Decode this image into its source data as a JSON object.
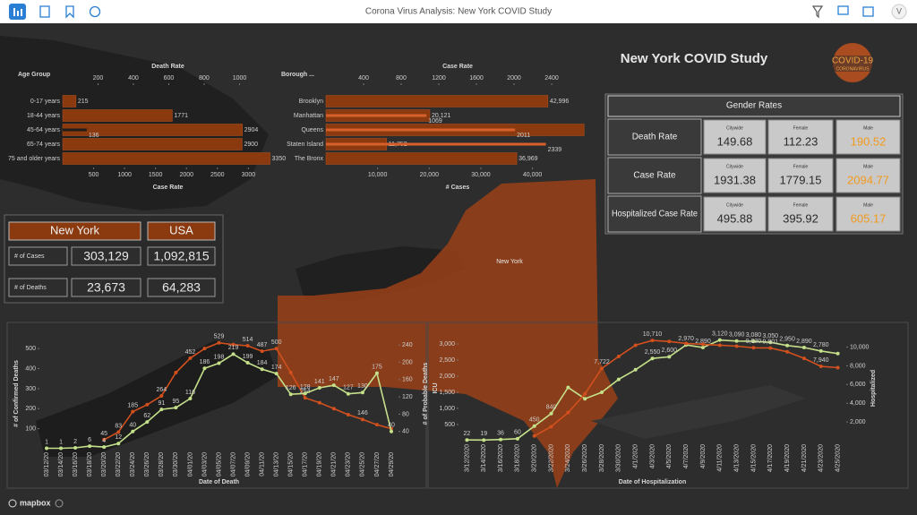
{
  "toolbar": {
    "title": "Corona Virus Analysis: New York COVID Study",
    "user_initial": "V"
  },
  "dashboard": {
    "title": "New York COVID Study",
    "logo_text": [
      "COVID-19",
      "CORONAVIRUS"
    ],
    "map_label": "New York",
    "map_attribution": "mapbox"
  },
  "summary_table": {
    "columns": [
      "New York",
      "USA"
    ],
    "rows": [
      {
        "label": "# of Cases",
        "values": [
          "303,129",
          "1,092,815"
        ]
      },
      {
        "label": "# of Deaths",
        "values": [
          "23,673",
          "64,283"
        ]
      }
    ]
  },
  "gender_rates": {
    "title": "Gender Rates",
    "columns": [
      "Citywide",
      "Female",
      "Male"
    ],
    "rows": [
      {
        "label": "Death Rate",
        "values": [
          "149.68",
          "112.23",
          "190.52"
        ]
      },
      {
        "label": "Case Rate",
        "values": [
          "1931.38",
          "1779.15",
          "2094.77"
        ]
      },
      {
        "label": "Hospitalized Case Rate",
        "values": [
          "495.88",
          "395.92",
          "605.17"
        ]
      }
    ]
  },
  "chart_data": [
    {
      "type": "hbar",
      "axis_title": "Age Group",
      "categories": [
        "0-17 years",
        "18-44 years",
        "45-64 years",
        "65-74 years",
        "75 and older years"
      ],
      "series": [
        {
          "name": "Case Rate",
          "color": "#8b3a0f",
          "values": [
            215,
            1771,
            2904,
            2900,
            3350
          ]
        },
        {
          "name": "Death Rate",
          "color": "#1e1e1e",
          "axis": "x2",
          "values": [
            null,
            null,
            136,
            null,
            null
          ]
        }
      ],
      "xlim": [
        0,
        3400
      ],
      "xticks": [
        500,
        1000,
        1500,
        2000,
        2500,
        3000
      ],
      "x2lim": [
        0,
        1190
      ],
      "x2ticks": [
        200,
        400,
        600,
        800,
        1000
      ]
    },
    {
      "type": "hbar",
      "axis_title": "Borough ...",
      "categories": [
        "Brooklyn",
        "Manhattan",
        "Queens",
        "Staten Island",
        "The Bronx"
      ],
      "series": [
        {
          "name": "# Cases",
          "color": "#8b3a0f",
          "values": [
            42996,
            20121,
            50000,
            11752,
            36969
          ],
          "value_labels": [
            "42,996",
            "20,121",
            null,
            "11,752",
            "36,969"
          ]
        },
        {
          "name": "Case Rate",
          "color": "#d8602a",
          "axis": "x2",
          "values": [
            null,
            1069,
            2011,
            2339,
            null
          ]
        }
      ],
      "xlim": [
        0,
        51000
      ],
      "xticks": [
        {
          "value": 10000,
          "label": "10,000"
        },
        {
          "value": 20000,
          "label": "20,000"
        },
        {
          "value": 30000,
          "label": "30,000"
        },
        {
          "value": 40000,
          "label": "40,000"
        }
      ],
      "x2lim": [
        0,
        2800
      ],
      "x2ticks": [
        400,
        800,
        1200,
        1600,
        2000,
        2400
      ]
    },
    {
      "type": "line",
      "x_title": "Date of Death",
      "y_title": "# of Confirmed Deaths",
      "y2_title": "# of Probable Deaths",
      "categories": [
        "03/12/20",
        "03/14/20",
        "03/16/20",
        "03/18/20",
        "03/20/20",
        "03/22/20",
        "03/24/20",
        "03/26/20",
        "03/28/20",
        "03/30/20",
        "04/01/20",
        "04/03/20",
        "04/05/20",
        "04/07/20",
        "04/09/20",
        "04/11/20",
        "04/13/20",
        "04/15/20",
        "04/17/20",
        "04/19/20",
        "04/21/20",
        "04/23/20",
        "04/25/20",
        "04/27/20",
        "04/29/20"
      ],
      "series": [
        {
          "color": "#d2501e",
          "values": [
            null,
            null,
            null,
            null,
            45,
            83,
            185,
            220,
            264,
            380,
            452,
            500,
            529,
            520,
            514,
            487,
            500,
            380,
            254,
            230,
            200,
            170,
            146,
            120,
            100
          ],
          "value_labels": [
            null,
            null,
            null,
            null,
            "45",
            "83",
            "185",
            null,
            "264",
            null,
            "452",
            null,
            "529",
            null,
            "514",
            "487",
            "500",
            null,
            "254",
            null,
            null,
            null,
            "146",
            null,
            null
          ]
        },
        {
          "color": "#c5e08a",
          "axis": "y2",
          "values": [
            1,
            1,
            2,
            6,
            4,
            12,
            40,
            62,
            91,
            95,
            116,
            186,
            198,
            219,
            199,
            184,
            174,
            126,
            128,
            141,
            147,
            127,
            130,
            175,
            40
          ]
        }
      ],
      "ylim": [
        0,
        550
      ],
      "yticks": [
        100,
        200,
        300,
        400,
        500
      ],
      "y2lim": [
        0,
        255
      ],
      "y2ticks": [
        40,
        80,
        120,
        160,
        200,
        240
      ]
    },
    {
      "type": "line",
      "x_title": "Date of Hospitalization",
      "y_title": "ICU",
      "y2_title": "Hospitalized",
      "categories": [
        "3/12/2020",
        "3/14/2020",
        "3/16/2020",
        "3/18/2020",
        "3/20/2020",
        "3/22/2020",
        "3/24/2020",
        "3/26/2020",
        "3/28/2020",
        "3/30/2020",
        "4/1/2020",
        "4/3/2020",
        "4/5/2020",
        "4/7/2020",
        "4/9/2020",
        "4/11/2020",
        "4/13/2020",
        "4/15/2020",
        "4/17/2020",
        "4/19/2020",
        "4/21/2020",
        "4/23/2020",
        "4/25/2020"
      ],
      "series": [
        {
          "color": "#c5e08a",
          "values": [
            22,
            19,
            36,
            60,
            450,
            840,
            1650,
            1300,
            1500,
            1900,
            2200,
            2550,
            2600,
            2970,
            2890,
            3120,
            3090,
            3080,
            3050,
            2950,
            2890,
            2780,
            2700
          ],
          "value_labels": [
            "22",
            "19",
            "36",
            "60",
            "450",
            "840",
            null,
            null,
            null,
            null,
            null,
            "2,550",
            "2,600",
            "2,970",
            "2,890",
            "3,120",
            "3,090",
            "3,080",
            "3,050",
            "2,950",
            "2,890",
            "2,780",
            null
          ]
        },
        {
          "color": "#d2501e",
          "axis": "y2",
          "values": [
            null,
            null,
            null,
            null,
            500,
            1500,
            3000,
            5000,
            7722,
            9000,
            10200,
            10710,
            10600,
            10400,
            10300,
            10200,
            10100,
            9930,
            9901,
            9500,
            8800,
            7940,
            7800
          ],
          "value_labels": [
            null,
            null,
            null,
            null,
            null,
            null,
            null,
            null,
            "7,722",
            null,
            null,
            "10,710",
            null,
            null,
            null,
            null,
            null,
            "9,930",
            "9,901",
            null,
            null,
            "7,940",
            null
          ]
        }
      ],
      "ylim": [
        0,
        3250
      ],
      "yticks": [
        500,
        {
          "value": 1000,
          "label": "1,000"
        },
        {
          "value": 1500,
          "label": "1,500"
        },
        {
          "value": 2000,
          "label": "2,000"
        },
        {
          "value": 2500,
          "label": "2,500"
        },
        {
          "value": 3000,
          "label": "3,000"
        }
      ],
      "y2lim": [
        0,
        11200
      ],
      "y2ticks": [
        {
          "value": 2000,
          "label": "2,000"
        },
        {
          "value": 4000,
          "label": "4,000"
        },
        {
          "value": 6000,
          "label": "6,000"
        },
        {
          "value": 8000,
          "label": "8,000"
        },
        {
          "value": 10000,
          "label": "10,000"
        }
      ]
    }
  ]
}
